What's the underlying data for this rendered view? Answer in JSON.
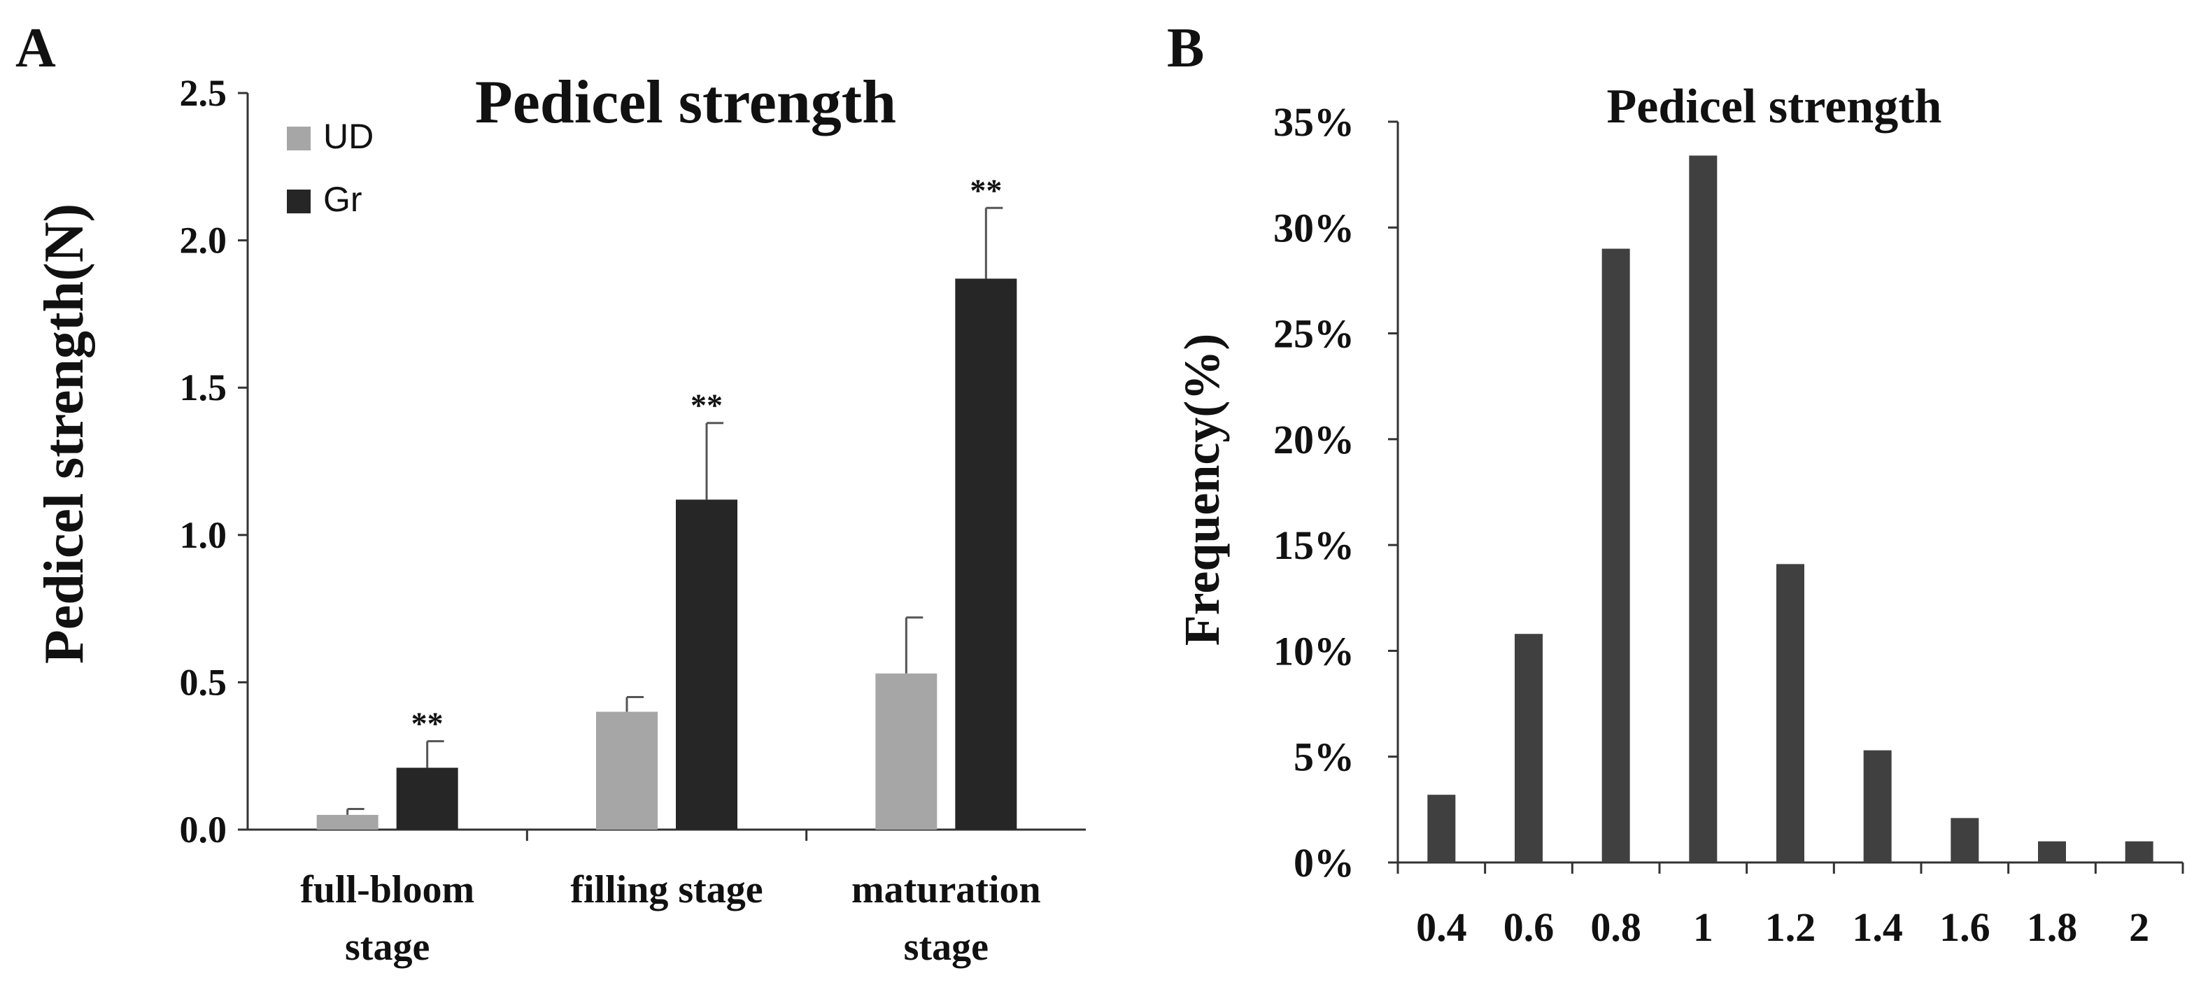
{
  "chart_data": [
    {
      "panel_label": "A",
      "type": "bar",
      "title": "Pedicel strength",
      "xlabel": "",
      "ylabel": "Pedicel strength(N)",
      "ylim": [
        0,
        2.5
      ],
      "yticks": [
        "0.0",
        "0.5",
        "1.0",
        "1.5",
        "2.0",
        "2.5"
      ],
      "categories": [
        [
          "full-bloom",
          "stage"
        ],
        [
          "filling stage"
        ],
        [
          "maturation",
          "stage"
        ]
      ],
      "series": [
        {
          "name": "UD",
          "color": "#a6a6a6",
          "values": [
            0.05,
            0.4,
            0.53
          ],
          "errors": [
            0.02,
            0.05,
            0.19
          ],
          "significance": [
            "",
            "",
            ""
          ]
        },
        {
          "name": "Gr",
          "color": "#262626",
          "values": [
            0.21,
            1.12,
            1.87
          ],
          "errors": [
            0.09,
            0.26,
            0.24
          ],
          "significance": [
            "**",
            "**",
            "**"
          ]
        }
      ],
      "legend_position": "top-left",
      "grid": false
    },
    {
      "panel_label": "B",
      "type": "bar",
      "title": "Pedicel strength",
      "xlabel": "",
      "ylabel": "Frequency(%)",
      "ylim": [
        0,
        35
      ],
      "yticks": [
        "0%",
        "5%",
        "10%",
        "15%",
        "20%",
        "25%",
        "30%",
        "35%"
      ],
      "categories": [
        "0.4",
        "0.6",
        "0.8",
        "1",
        "1.2",
        "1.4",
        "1.6",
        "1.8",
        "2"
      ],
      "values": [
        3.2,
        10.8,
        29.0,
        33.4,
        14.1,
        5.3,
        2.1,
        1.0,
        1.0
      ],
      "color": "#404040",
      "grid": false
    }
  ]
}
